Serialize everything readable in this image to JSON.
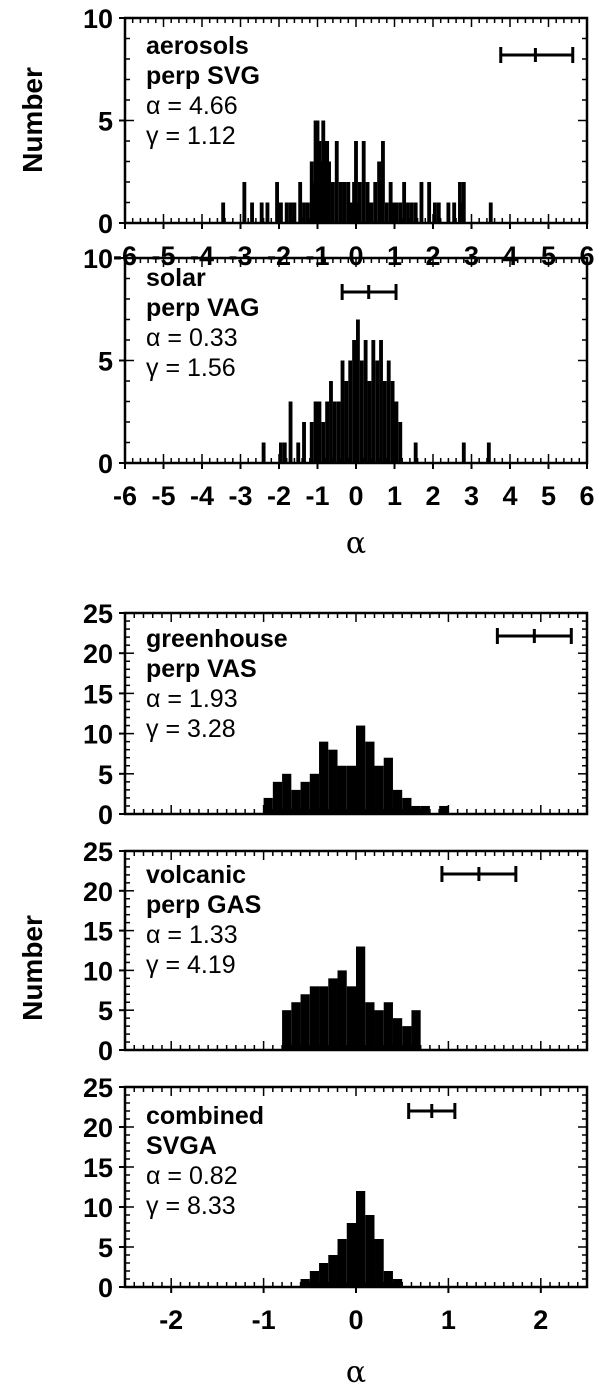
{
  "figure": {
    "top_ylabel": "Number",
    "bottom_ylabel": "Number",
    "top_xlabel": "α",
    "bottom_xlabel": "α"
  },
  "chart_data": [
    {
      "type": "bar",
      "label_line1": "aerosols",
      "label_line2": "perp SVG",
      "alpha_text": "α = 4.66",
      "gamma_text": "γ = 1.12",
      "xlim": [
        -6,
        6
      ],
      "ylim": [
        0,
        10
      ],
      "xticks": [
        "-6",
        "-5",
        "-4",
        "-3",
        "-2",
        "-1",
        "0",
        "1",
        "2",
        "3",
        "4",
        "5",
        "6"
      ],
      "yticks": [
        "0",
        "5",
        "10"
      ],
      "error_bar": {
        "center": 4.66,
        "low": 3.76,
        "high": 5.63
      },
      "x": [
        -3.45,
        -2.9,
        -2.7,
        -2.45,
        -2.3,
        -2.05,
        -1.95,
        -1.8,
        -1.7,
        -1.6,
        -1.45,
        -1.35,
        -1.25,
        -1.15,
        -1.1,
        -1.05,
        -1.0,
        -0.95,
        -0.9,
        -0.85,
        -0.8,
        -0.75,
        -0.7,
        -0.6,
        -0.5,
        -0.4,
        -0.3,
        -0.2,
        -0.15,
        -0.1,
        -0.05,
        0.0,
        0.05,
        0.1,
        0.2,
        0.3,
        0.35,
        0.4,
        0.5,
        0.6,
        0.65,
        0.7,
        0.8,
        0.9,
        0.95,
        1.05,
        1.15,
        1.25,
        1.35,
        1.45,
        1.55,
        1.7,
        1.9,
        2.05,
        2.15,
        2.4,
        2.55,
        2.7,
        2.75,
        2.8,
        3.5
      ],
      "values": [
        1,
        2,
        1,
        1,
        1,
        2,
        1,
        1,
        1,
        1,
        2,
        1,
        1,
        3,
        2,
        5,
        5,
        4,
        3,
        5,
        4,
        4,
        3,
        2,
        4,
        2,
        2,
        2,
        1,
        1,
        2,
        4,
        1,
        2,
        4,
        2,
        1,
        1,
        2,
        3,
        2,
        4,
        1,
        2,
        1,
        1,
        1,
        2,
        1,
        1,
        1,
        2,
        2,
        1,
        1,
        1,
        1,
        2,
        1,
        2,
        1
      ]
    },
    {
      "type": "bar",
      "label_line1": "solar",
      "label_line2": "perp VAG",
      "alpha_text": "α = 0.33",
      "gamma_text": "γ = 1.56",
      "xlim": [
        -6,
        6
      ],
      "ylim": [
        0,
        10
      ],
      "xticks": [
        "-6",
        "-5",
        "-4",
        "-3",
        "-2",
        "-1",
        "0",
        "1",
        "2",
        "3",
        "4",
        "5",
        "6"
      ],
      "yticks": [
        "0",
        "5",
        "10"
      ],
      "error_bar": {
        "center": 0.33,
        "low": -0.36,
        "high": 1.04
      },
      "x": [
        -2.4,
        -1.95,
        -1.85,
        -1.7,
        -1.5,
        -1.35,
        -1.15,
        -1.05,
        -0.95,
        -0.85,
        -0.75,
        -0.65,
        -0.55,
        -0.45,
        -0.35,
        -0.25,
        -0.15,
        -0.05,
        0.05,
        0.15,
        0.25,
        0.35,
        0.45,
        0.55,
        0.65,
        0.75,
        0.85,
        0.95,
        1.05,
        1.15,
        1.55,
        2.8,
        3.45
      ],
      "values": [
        1,
        1,
        1,
        3,
        1,
        2,
        2,
        3,
        3,
        2,
        3,
        4,
        3,
        3,
        5,
        4,
        5,
        6,
        7,
        5,
        6,
        4,
        6,
        5,
        6,
        4,
        5,
        4,
        3,
        2,
        1,
        1,
        1
      ]
    },
    {
      "type": "bar",
      "label_line1": "greenhouse",
      "label_line2": "perp VAS",
      "alpha_text": "α = 1.93",
      "gamma_text": "γ = 3.28",
      "xlim": [
        -2.5,
        2.5
      ],
      "ylim": [
        0,
        25
      ],
      "xticks": [],
      "yticks": [
        "0",
        "5",
        "10",
        "15",
        "20",
        "25"
      ],
      "error_bar": {
        "center": 1.93,
        "low": 1.53,
        "high": 2.33
      },
      "x": [
        -0.95,
        -0.85,
        -0.75,
        -0.65,
        -0.55,
        -0.45,
        -0.35,
        -0.25,
        -0.15,
        -0.05,
        0.05,
        0.15,
        0.25,
        0.35,
        0.45,
        0.55,
        0.65,
        0.75,
        0.95
      ],
      "values": [
        2,
        4,
        5,
        3,
        4,
        5,
        9,
        8,
        6,
        6,
        11,
        9,
        6,
        7,
        3,
        2,
        1,
        1,
        1
      ]
    },
    {
      "type": "bar",
      "label_line1": "volcanic",
      "label_line2": "perp GAS",
      "alpha_text": "α = 1.33",
      "gamma_text": "γ = 4.19",
      "xlim": [
        -2.5,
        2.5
      ],
      "ylim": [
        0,
        25
      ],
      "xticks": [],
      "yticks": [
        "0",
        "5",
        "10",
        "15",
        "20",
        "25"
      ],
      "error_bar": {
        "center": 1.33,
        "low": 0.93,
        "high": 1.73
      },
      "x": [
        -0.75,
        -0.65,
        -0.55,
        -0.45,
        -0.35,
        -0.25,
        -0.15,
        -0.05,
        0.05,
        0.15,
        0.25,
        0.35,
        0.45,
        0.55,
        0.65
      ],
      "values": [
        5,
        6,
        7,
        8,
        8,
        9,
        10,
        8,
        13,
        6,
        5,
        6,
        4,
        3,
        5
      ]
    },
    {
      "type": "bar",
      "label_line1": "combined",
      "label_line2": "SVGA",
      "alpha_text": "α = 0.82",
      "gamma_text": "γ = 8.33",
      "xlim": [
        -2.5,
        2.5
      ],
      "ylim": [
        0,
        25
      ],
      "xticks": [
        "-2",
        "-1",
        "0",
        "1",
        "2"
      ],
      "yticks": [
        "0",
        "5",
        "10",
        "15",
        "20",
        "25"
      ],
      "error_bar": {
        "center": 0.82,
        "low": 0.57,
        "high": 1.07
      },
      "x": [
        -0.55,
        -0.45,
        -0.35,
        -0.25,
        -0.15,
        -0.05,
        0.05,
        0.15,
        0.25,
        0.35,
        0.45
      ],
      "values": [
        1,
        2,
        3,
        4,
        6,
        8,
        12,
        9,
        6,
        2,
        1
      ]
    }
  ]
}
